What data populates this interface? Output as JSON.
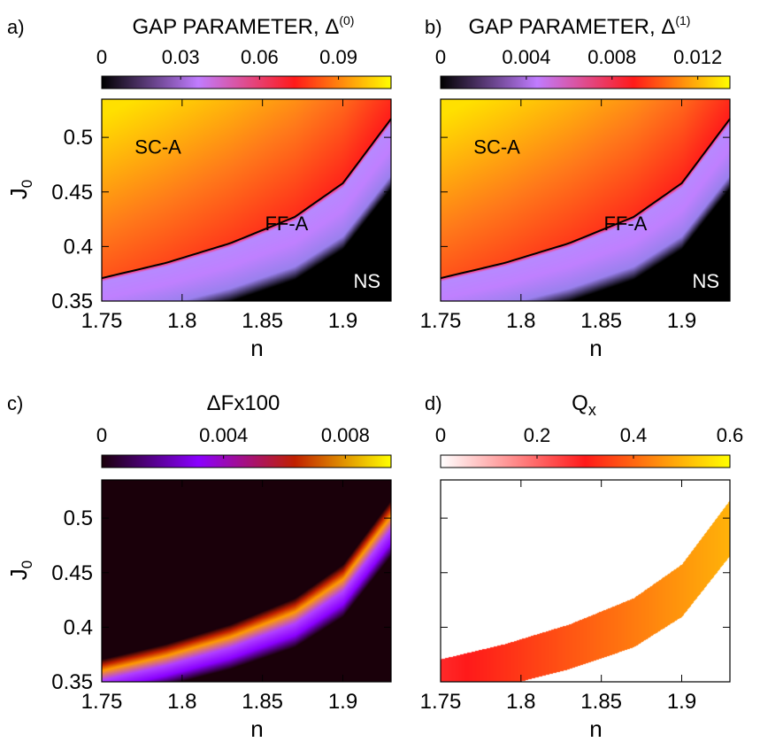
{
  "chart_data": [
    {
      "type": "heatmap",
      "panel_label": "a)",
      "title": "GAP PARAMETER, Δ",
      "title_superscript": "(0)",
      "colorbar": {
        "ticks": [
          "0",
          "0.03",
          "0.06",
          "0.09"
        ],
        "tick_values": [
          0,
          0.03,
          0.06,
          0.09
        ],
        "range": [
          0,
          0.11
        ],
        "colors": [
          "#000000",
          "#c07cff",
          "#ff1a1a",
          "#ffff00"
        ]
      },
      "xlabel": "n",
      "ylabel": "J",
      "ylabel_subscript": "0",
      "xlim": [
        1.75,
        1.93
      ],
      "ylim": [
        0.35,
        0.535
      ],
      "xticks": [
        1.75,
        1.8,
        1.85,
        1.9
      ],
      "xtick_labels": [
        "1.75",
        "1.8",
        "1.85",
        "1.9"
      ],
      "yticks": [
        0.35,
        0.4,
        0.45,
        0.5
      ],
      "ytick_labels": [
        "0.35",
        "0.4",
        "0.45",
        "0.5"
      ],
      "boundary_upper": [
        [
          1.75,
          0.371
        ],
        [
          1.79,
          0.385
        ],
        [
          1.83,
          0.403
        ],
        [
          1.87,
          0.427
        ],
        [
          1.9,
          0.458
        ],
        [
          1.93,
          0.517
        ]
      ],
      "boundary_lower": [
        [
          1.75,
          0.334
        ],
        [
          1.79,
          0.347
        ],
        [
          1.83,
          0.362
        ],
        [
          1.87,
          0.382
        ],
        [
          1.9,
          0.41
        ],
        [
          1.93,
          0.466
        ]
      ],
      "annotations": [
        {
          "text": "SC-A",
          "x": 1.785,
          "y": 0.485
        },
        {
          "text": "FF-A",
          "x": 1.865,
          "y": 0.415
        },
        {
          "text": "NS",
          "x": 1.915,
          "y": 0.362
        }
      ],
      "annotation_colors": [
        "#000000",
        "#000000",
        "#ffffff"
      ],
      "show_boundary_line": true
    },
    {
      "type": "heatmap",
      "panel_label": "b)",
      "title": "GAP PARAMETER, Δ",
      "title_superscript": "(1)",
      "colorbar": {
        "ticks": [
          "0",
          "0.004",
          "0.008",
          "0.012"
        ],
        "tick_values": [
          0,
          0.004,
          0.008,
          0.012
        ],
        "range": [
          0,
          0.0135
        ],
        "colors": [
          "#000000",
          "#c07cff",
          "#ff1a1a",
          "#ffff00"
        ]
      },
      "xlabel": "n",
      "xlim": [
        1.75,
        1.93
      ],
      "ylim": [
        0.35,
        0.535
      ],
      "xticks": [
        1.75,
        1.8,
        1.85,
        1.9
      ],
      "xtick_labels": [
        "1.75",
        "1.8",
        "1.85",
        "1.9"
      ],
      "yticks": [
        0.35,
        0.4,
        0.45,
        0.5
      ],
      "ytick_labels": [],
      "boundary_upper": [
        [
          1.75,
          0.371
        ],
        [
          1.79,
          0.385
        ],
        [
          1.83,
          0.403
        ],
        [
          1.87,
          0.427
        ],
        [
          1.9,
          0.458
        ],
        [
          1.93,
          0.517
        ]
      ],
      "boundary_lower": [
        [
          1.75,
          0.334
        ],
        [
          1.79,
          0.347
        ],
        [
          1.83,
          0.362
        ],
        [
          1.87,
          0.382
        ],
        [
          1.9,
          0.41
        ],
        [
          1.93,
          0.466
        ]
      ],
      "annotations": [
        {
          "text": "SC-A",
          "x": 1.785,
          "y": 0.485
        },
        {
          "text": "FF-A",
          "x": 1.865,
          "y": 0.415
        },
        {
          "text": "NS",
          "x": 1.915,
          "y": 0.362
        }
      ],
      "annotation_colors": [
        "#000000",
        "#000000",
        "#ffffff"
      ],
      "show_boundary_line": true
    },
    {
      "type": "heatmap",
      "panel_label": "c)",
      "title": "ΔFx100",
      "colorbar": {
        "ticks": [
          "0",
          "0.004",
          "0.008"
        ],
        "tick_values": [
          0,
          0.004,
          0.008
        ],
        "range": [
          0,
          0.0095
        ],
        "colors": [
          "#1a000a",
          "#8a00ff",
          "#c02000",
          "#ffff00"
        ]
      },
      "xlabel": "n",
      "ylabel": "J",
      "ylabel_subscript": "0",
      "xlim": [
        1.75,
        1.93
      ],
      "ylim": [
        0.35,
        0.535
      ],
      "xticks": [
        1.75,
        1.8,
        1.85,
        1.9
      ],
      "xtick_labels": [
        "1.75",
        "1.8",
        "1.85",
        "1.9"
      ],
      "yticks": [
        0.35,
        0.4,
        0.45,
        0.5
      ],
      "ytick_labels": [
        "0.35",
        "0.4",
        "0.45",
        "0.5"
      ],
      "boundary_upper": [
        [
          1.75,
          0.371
        ],
        [
          1.79,
          0.385
        ],
        [
          1.83,
          0.403
        ],
        [
          1.87,
          0.427
        ],
        [
          1.9,
          0.458
        ],
        [
          1.93,
          0.517
        ]
      ],
      "boundary_lower": [
        [
          1.75,
          0.334
        ],
        [
          1.79,
          0.347
        ],
        [
          1.83,
          0.362
        ],
        [
          1.87,
          0.382
        ],
        [
          1.9,
          0.41
        ],
        [
          1.93,
          0.466
        ]
      ],
      "background_color": "#1a000a"
    },
    {
      "type": "heatmap",
      "panel_label": "d)",
      "title": "Q",
      "title_subscript": "x",
      "colorbar": {
        "ticks": [
          "0",
          "0.2",
          "0.4",
          "0.6"
        ],
        "tick_values": [
          0,
          0.2,
          0.4,
          0.6
        ],
        "range": [
          0,
          0.6
        ],
        "colors": [
          "#ffffff",
          "#ff1a1a",
          "#ffff00"
        ]
      },
      "xlabel": "n",
      "xlim": [
        1.75,
        1.93
      ],
      "ylim": [
        0.35,
        0.535
      ],
      "xticks": [
        1.75,
        1.8,
        1.85,
        1.9
      ],
      "xtick_labels": [
        "1.75",
        "1.8",
        "1.85",
        "1.9"
      ],
      "yticks": [
        0.35,
        0.4,
        0.45,
        0.5
      ],
      "ytick_labels": [],
      "boundary_upper": [
        [
          1.75,
          0.371
        ],
        [
          1.79,
          0.385
        ],
        [
          1.83,
          0.403
        ],
        [
          1.87,
          0.427
        ],
        [
          1.9,
          0.458
        ],
        [
          1.93,
          0.517
        ]
      ],
      "boundary_lower": [
        [
          1.75,
          0.334
        ],
        [
          1.79,
          0.347
        ],
        [
          1.83,
          0.362
        ],
        [
          1.87,
          0.382
        ],
        [
          1.9,
          0.41
        ],
        [
          1.93,
          0.466
        ]
      ],
      "background_color": "#ffffff",
      "qx_range": [
        0.28,
        0.5
      ]
    }
  ]
}
